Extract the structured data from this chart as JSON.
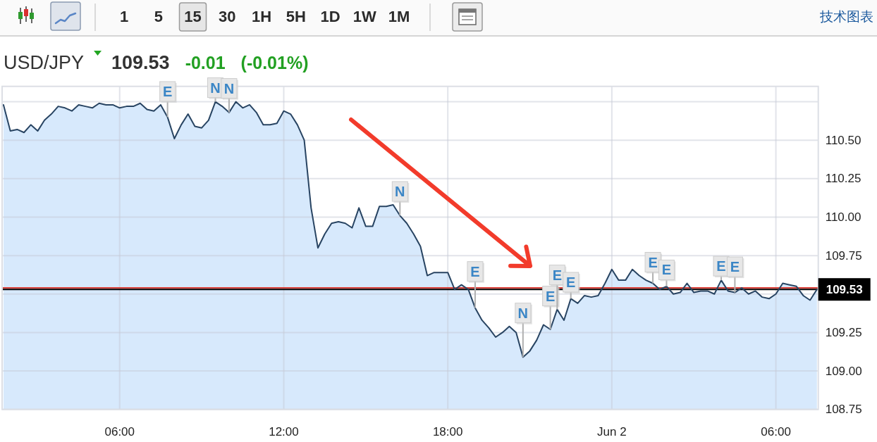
{
  "chart_data": {
    "type": "area",
    "title": "USD/JPY",
    "subtitle": "109.53",
    "annotations": [
      "-0.01",
      "(-0.01%)",
      "1 5 15 30 1H 5H 1D 1W 1M",
      "技术图表",
      {
        "text": "E",
        "x": "--06-01T07:45",
        "y": 110.65
      },
      {
        "text": "N",
        "x": "--06-01T09:30",
        "y": 110.75
      },
      {
        "text": "N",
        "x": "--06-01T10:00",
        "y": 110.68
      },
      {
        "text": "N",
        "x": "--06-01T16:15",
        "y": 110.01
      },
      {
        "text": "E",
        "x": "--06-01T19:00",
        "y": 109.41
      },
      {
        "text": "N",
        "x": "--06-01T20:45",
        "y": 109.09
      },
      {
        "text": "E",
        "x": "--06-01T21:45",
        "y": 109.27
      },
      {
        "text": "E",
        "x": "--06-01T22:00",
        "y": 109.4
      },
      {
        "text": "E",
        "x": "--06-01T22:30",
        "y": 109.47
      },
      {
        "text": "E",
        "x": "--06-02T01:30",
        "y": 109.57
      },
      {
        "text": "E",
        "x": "--06-02T02:00",
        "y": 109.55
      },
      {
        "text": "E",
        "x": "--06-02T04:00",
        "y": 109.59
      },
      {
        "text": "E",
        "x": "--06-02T04:30",
        "y": 109.51
      }
    ],
    "x": [
      "--06-01T01:45",
      "--06-01T02:00",
      "--06-01T02:15",
      "--06-01T02:30",
      "--06-01T02:45",
      "--06-01T03:00",
      "--06-01T03:15",
      "--06-01T03:30",
      "--06-01T03:45",
      "--06-01T04:00",
      "--06-01T04:15",
      "--06-01T04:30",
      "--06-01T04:45",
      "--06-01T05:00",
      "--06-01T05:15",
      "--06-01T05:30",
      "--06-01T05:45",
      "--06-01T06:00",
      "--06-01T06:15",
      "--06-01T06:30",
      "--06-01T06:45",
      "--06-01T07:00",
      "--06-01T07:15",
      "--06-01T07:30",
      "--06-01T07:45",
      "--06-01T08:00",
      "--06-01T08:15",
      "--06-01T08:30",
      "--06-01T08:45",
      "--06-01T09:00",
      "--06-01T09:15",
      "--06-01T09:30",
      "--06-01T09:45",
      "--06-01T10:00",
      "--06-01T10:15",
      "--06-01T10:30",
      "--06-01T10:45",
      "--06-01T11:00",
      "--06-01T11:15",
      "--06-01T11:30",
      "--06-01T11:45",
      "--06-01T12:00",
      "--06-01T12:15",
      "--06-01T12:30",
      "--06-01T12:45",
      "--06-01T13:00",
      "--06-01T13:15",
      "--06-01T13:30",
      "--06-01T13:45",
      "--06-01T14:00",
      "--06-01T14:15",
      "--06-01T14:30",
      "--06-01T14:45",
      "--06-01T15:00",
      "--06-01T15:15",
      "--06-01T15:30",
      "--06-01T15:45",
      "--06-01T16:00",
      "--06-01T16:15",
      "--06-01T16:30",
      "--06-01T16:45",
      "--06-01T17:00",
      "--06-01T17:15",
      "--06-01T17:30",
      "--06-01T17:45",
      "--06-01T18:00",
      "--06-01T18:15",
      "--06-01T18:30",
      "--06-01T18:45",
      "--06-01T19:00",
      "--06-01T19:15",
      "--06-01T19:30",
      "--06-01T19:45",
      "--06-01T20:00",
      "--06-01T20:15",
      "--06-01T20:30",
      "--06-01T20:45",
      "--06-01T21:00",
      "--06-01T21:15",
      "--06-01T21:30",
      "--06-01T21:45",
      "--06-01T22:00",
      "--06-01T22:15",
      "--06-01T22:30",
      "--06-01T22:45",
      "--06-01T23:00",
      "--06-01T23:15",
      "--06-01T23:30",
      "--06-01T23:45",
      "--06-02T00:00",
      "--06-02T00:15",
      "--06-02T00:30",
      "--06-02T00:45",
      "--06-02T01:00",
      "--06-02T01:15",
      "--06-02T01:30",
      "--06-02T01:45",
      "--06-02T02:00",
      "--06-02T02:15",
      "--06-02T02:30",
      "--06-02T02:45",
      "--06-02T03:00",
      "--06-02T03:15",
      "--06-02T03:30",
      "--06-02T03:45",
      "--06-02T04:00",
      "--06-02T04:15",
      "--06-02T04:30",
      "--06-02T04:45",
      "--06-02T05:00",
      "--06-02T05:15",
      "--06-02T05:30",
      "--06-02T05:45",
      "--06-02T06:00",
      "--06-02T06:15",
      "--06-02T06:30",
      "--06-02T06:45",
      "--06-02T07:00",
      "--06-02T07:15",
      "--06-02T07:30"
    ],
    "series": [
      {
        "color": "#d7e9fc",
        "values": [
          110.73,
          110.56,
          110.57,
          110.55,
          110.6,
          110.56,
          110.63,
          110.67,
          110.72,
          110.71,
          110.69,
          110.73,
          110.72,
          110.71,
          110.74,
          110.73,
          110.73,
          110.71,
          110.72,
          110.72,
          110.74,
          110.7,
          110.69,
          110.73,
          110.65,
          110.51,
          110.6,
          110.67,
          110.59,
          110.58,
          110.63,
          110.75,
          110.72,
          110.68,
          110.75,
          110.71,
          110.73,
          110.68,
          110.6,
          110.6,
          110.61,
          110.69,
          110.67,
          110.6,
          110.5,
          110.06,
          109.8,
          109.89,
          109.96,
          109.97,
          109.96,
          109.93,
          110.06,
          109.94,
          109.94,
          110.07,
          110.07,
          110.08,
          110.01,
          109.96,
          109.89,
          109.81,
          109.62,
          109.64,
          109.64,
          109.64,
          109.53,
          109.56,
          109.53,
          109.41,
          109.33,
          109.28,
          109.22,
          109.25,
          109.29,
          109.25,
          109.09,
          109.13,
          109.2,
          109.3,
          109.27,
          109.4,
          109.33,
          109.47,
          109.44,
          109.49,
          109.48,
          109.49,
          109.57,
          109.66,
          109.59,
          109.59,
          109.66,
          109.62,
          109.59,
          109.57,
          109.53,
          109.55,
          109.5,
          109.51,
          109.57,
          109.51,
          109.52,
          109.52,
          109.5,
          109.59,
          109.52,
          109.51,
          109.54,
          109.5,
          109.52,
          109.48,
          109.47,
          109.5,
          109.57,
          109.56,
          109.55,
          109.49,
          109.46,
          109.53
        ]
      }
    ],
    "xlim": [
      "--06-01T01:42",
      "--06-02T07:33"
    ],
    "xticks": [
      {
        "value": "--06-01T06:00",
        "label": "06:00"
      },
      {
        "value": "--06-01T12:00",
        "label": "12:00"
      },
      {
        "value": "--06-01T18:00",
        "label": "18:00"
      },
      {
        "value": "--06-02",
        "label": "Jun 2"
      },
      {
        "value": "--06-02T06:00",
        "label": "06:00"
      }
    ],
    "ylim": [
      108.75,
      110.85
    ],
    "yticks": [
      {
        "value": 108.75,
        "label": "108.75"
      },
      {
        "value": 109,
        "label": "109.00"
      },
      {
        "value": 109.25,
        "label": "109.25"
      },
      {
        "value": 109.5,
        "label": null
      },
      {
        "value": 109.75,
        "label": "109.75"
      },
      {
        "value": 110,
        "label": "110.00"
      },
      {
        "value": 110.25,
        "label": "110.25"
      },
      {
        "value": 110.5,
        "label": "110.50"
      },
      {
        "value": 110.75,
        "label": null
      }
    ],
    "ref_lines": [
      {
        "axis": "y",
        "value": 109.54,
        "color": "#d9413a"
      },
      {
        "axis": "y",
        "value": 109.53,
        "label": "109.53",
        "color": "#000000"
      }
    ],
    "grid": true
  }
}
